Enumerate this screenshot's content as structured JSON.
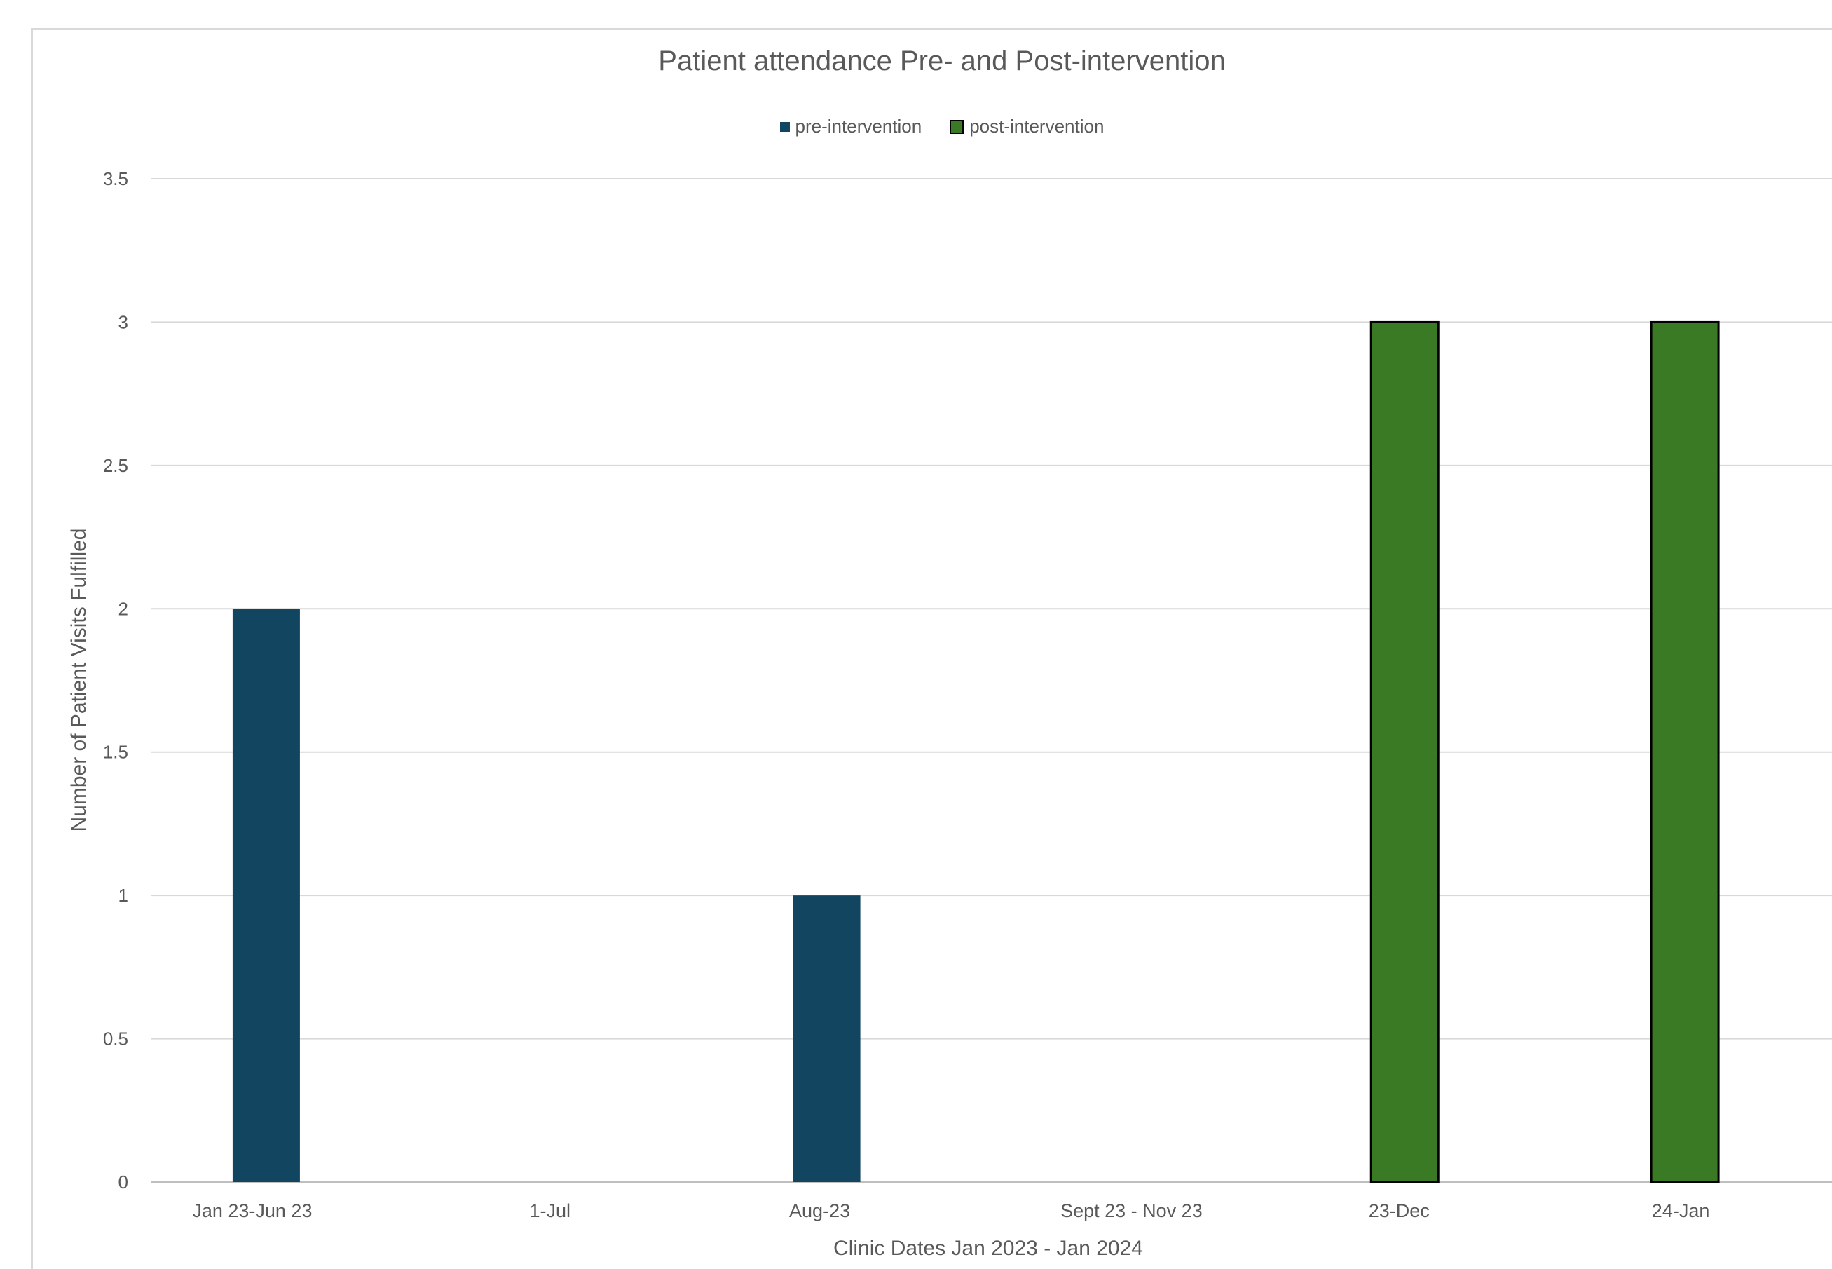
{
  "chart_data": {
    "type": "bar",
    "title": "Patient attendance Pre- and Post-intervention",
    "xlabel": "Clinic Dates Jan 2023 - Jan 2024",
    "ylabel": "Number of Patient Visits Fulfilled",
    "ylim": [
      0,
      3.5
    ],
    "yticks": [
      "0",
      "0.5",
      "1",
      "1.5",
      "2",
      "2.5",
      "3",
      "3.5"
    ],
    "grid": true,
    "legend_position": "top",
    "categories": [
      "Jan 23-Jun 23",
      "1-Jul",
      "Aug-23",
      "Sept 23 - Nov 23",
      "23-Dec",
      "24-Jan"
    ],
    "series": [
      {
        "name": "pre-intervention",
        "color": "#12455f",
        "values": [
          2,
          0,
          1,
          0,
          0,
          0
        ]
      },
      {
        "name": "post-intervention",
        "color": "#3b7a24",
        "values": [
          0,
          0,
          0,
          0,
          3,
          3
        ]
      }
    ]
  }
}
